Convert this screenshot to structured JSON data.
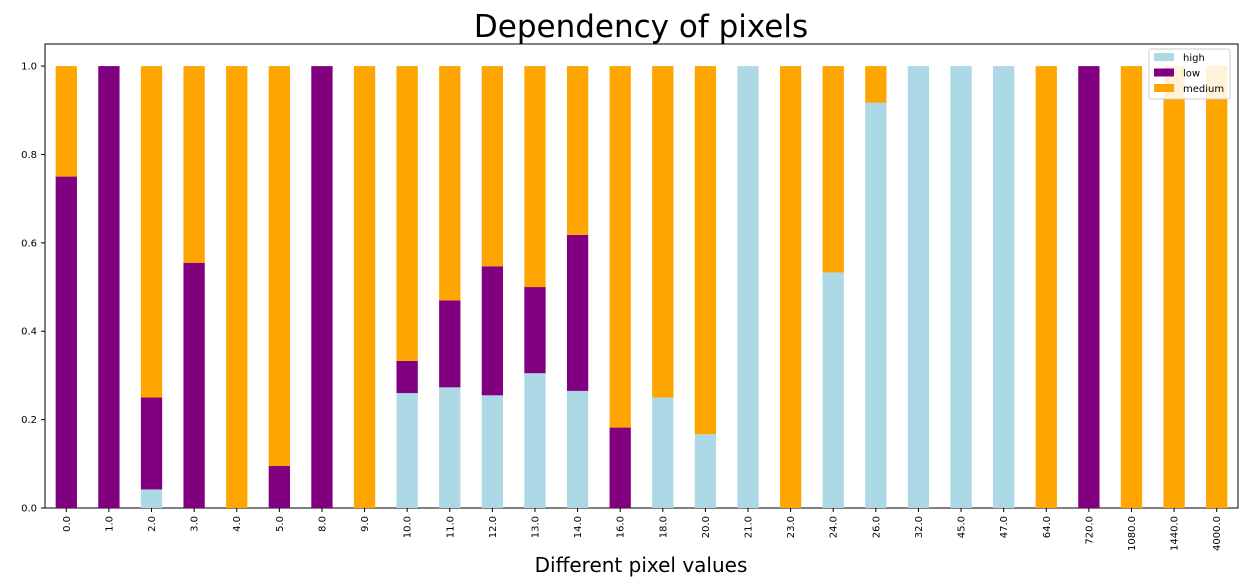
{
  "chart_data": {
    "type": "bar",
    "stacked": true,
    "title": "Dependency of pixels",
    "xlabel": "Different pixel values",
    "ylabel": "",
    "ylim": [
      0,
      1.05
    ],
    "yticks": [
      "0.0",
      "0.2",
      "0.4",
      "0.6",
      "0.8",
      "1.0"
    ],
    "ytick_values": [
      0,
      0.2,
      0.4,
      0.6,
      0.8,
      1.0
    ],
    "grid": false,
    "legend_position": "top-right",
    "categories": [
      "0.0",
      "1.0",
      "2.0",
      "3.0",
      "4.0",
      "5.0",
      "8.0",
      "9.0",
      "10.0",
      "11.0",
      "12.0",
      "13.0",
      "14.0",
      "16.0",
      "18.0",
      "20.0",
      "21.0",
      "23.0",
      "24.0",
      "26.0",
      "32.0",
      "45.0",
      "47.0",
      "64.0",
      "720.0",
      "1080.0",
      "1440.0",
      "4000.0"
    ],
    "series": [
      {
        "name": "high",
        "color": "#add8e6",
        "values": [
          0,
          0,
          0.042,
          0,
          0,
          0,
          0,
          0,
          0.26,
          0.273,
          0.255,
          0.305,
          0.265,
          0,
          0.25,
          0.167,
          1.0,
          0,
          0.533,
          0.917,
          1.0,
          1.0,
          1.0,
          0,
          0,
          0,
          0,
          0
        ]
      },
      {
        "name": "low",
        "color": "#800080",
        "values": [
          0.75,
          1.0,
          0.208,
          0.555,
          0,
          0.095,
          1.0,
          0,
          0.073,
          0.197,
          0.292,
          0.195,
          0.353,
          0.182,
          0,
          0,
          0,
          0,
          0,
          0,
          0,
          0,
          0,
          0,
          1.0,
          0,
          0,
          0
        ]
      },
      {
        "name": "medium",
        "color": "#ffa500",
        "values": [
          0.25,
          0,
          0.75,
          0.445,
          1.0,
          0.905,
          0,
          1.0,
          0.667,
          0.53,
          0.453,
          0.5,
          0.382,
          0.818,
          0.75,
          0.833,
          0,
          1.0,
          0.467,
          0.083,
          0,
          0,
          0,
          1.0,
          0,
          1.0,
          1.0,
          1.0
        ]
      }
    ]
  }
}
